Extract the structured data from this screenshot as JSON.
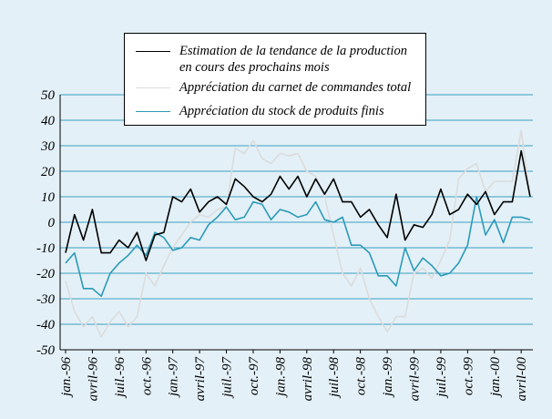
{
  "chart_data": {
    "type": "line",
    "categories": [
      "jan.-96",
      null,
      null,
      "avril-96",
      null,
      null,
      "juil.-96",
      null,
      null,
      "oct.-96",
      null,
      null,
      "jan.-97",
      null,
      null,
      "avril-97",
      null,
      null,
      "juil.-97",
      null,
      null,
      "oct.-97",
      null,
      null,
      "jan.-98",
      null,
      null,
      "avril-98",
      null,
      null,
      "juil.-98",
      null,
      null,
      "oct.-98",
      null,
      null,
      "jan.-99",
      null,
      null,
      "avril-99",
      null,
      null,
      "juil.-99",
      null,
      null,
      "oct.-99",
      null,
      null,
      "jan.-00",
      null,
      null,
      "avril-00",
      null
    ],
    "series": [
      {
        "name": "Estimation de la tendance de la production\nen cours des prochains mois",
        "color": "#000000",
        "values": [
          -12,
          3,
          -7,
          5,
          -12,
          -12,
          -7,
          -10,
          -4,
          -15,
          -5,
          -4,
          10,
          8,
          13,
          4,
          8,
          10,
          7,
          17,
          14,
          10,
          8,
          11,
          18,
          13,
          18,
          10,
          17,
          11,
          17,
          8,
          8,
          2,
          5,
          -1,
          -6,
          11,
          -7,
          -1,
          -2,
          3,
          13,
          3,
          5,
          11,
          7,
          12,
          3,
          8,
          8,
          28,
          10
        ]
      },
      {
        "name": "Appréciation du carnet de commandes total",
        "color": "#dcdcdc",
        "values": [
          -23,
          -35,
          -41,
          -37,
          -45,
          -39,
          -35,
          -41,
          -37,
          -20,
          -25,
          -17,
          -10,
          -5,
          0,
          3,
          2,
          5,
          6,
          29,
          27,
          32,
          25,
          23,
          27,
          26,
          27,
          20,
          18,
          10,
          -5,
          -20,
          -25,
          -18,
          -30,
          -37,
          -43,
          -37,
          -37,
          -20,
          -18,
          -22,
          -15,
          -7,
          17,
          21,
          23,
          12,
          16,
          16,
          16,
          36,
          10
        ]
      },
      {
        "name": "Appréciation du stock de produits finis",
        "color": "#2b9ab8",
        "values": [
          -16,
          -12,
          -26,
          -26,
          -29,
          -20,
          -16,
          -13,
          -9,
          -13,
          -4,
          -6,
          -11,
          -10,
          -6,
          -7,
          -1,
          2,
          6,
          1,
          2,
          8,
          7,
          1,
          5,
          4,
          2,
          3,
          8,
          1,
          0,
          2,
          -9,
          -9,
          -12,
          -21,
          -21,
          -25,
          -10,
          -19,
          -14,
          -17,
          -21,
          -20,
          -16,
          -9,
          10,
          -5,
          1,
          -8,
          2,
          2,
          1
        ]
      }
    ],
    "ylim": [
      -50,
      50
    ],
    "yticks": [
      -50,
      -40,
      -30,
      -20,
      -10,
      0,
      10,
      20,
      30,
      40,
      50
    ],
    "grid": true
  }
}
